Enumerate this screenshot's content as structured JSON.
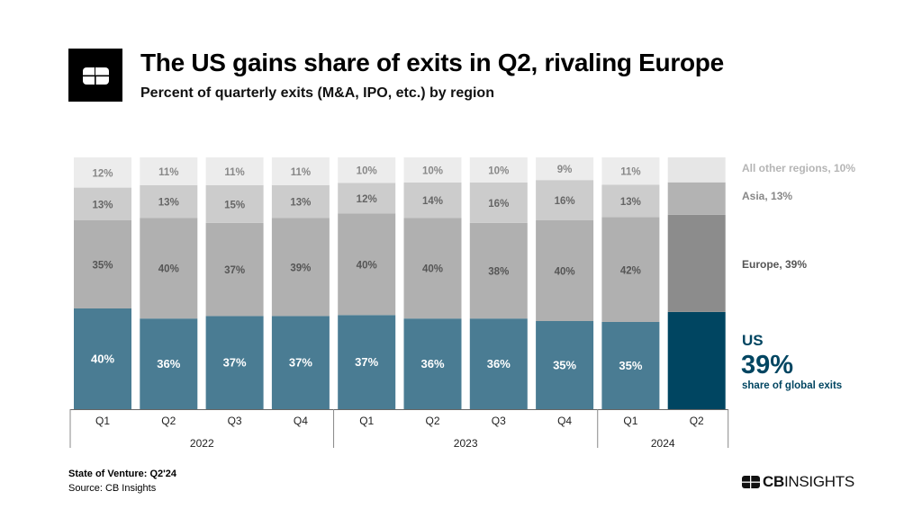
{
  "header": {
    "title": "The US gains share of exits in Q2, rivaling Europe",
    "subtitle": "Percent of quarterly exits (M&A, IPO, etc.) by region"
  },
  "chart_data": {
    "type": "bar",
    "stacked": true,
    "percent": true,
    "categories": [
      "Q1",
      "Q2",
      "Q3",
      "Q4",
      "Q1",
      "Q2",
      "Q3",
      "Q4",
      "Q1",
      "Q2"
    ],
    "years": [
      {
        "label": "2022",
        "quarters": 4
      },
      {
        "label": "2023",
        "quarters": 4
      },
      {
        "label": "2024",
        "quarters": 2
      }
    ],
    "series": [
      {
        "key": "us",
        "values": [
          40,
          36,
          37,
          37,
          37,
          36,
          36,
          35,
          35,
          39
        ],
        "color": "#4a7c93",
        "highlight_color": "#004561"
      },
      {
        "key": "europe",
        "values": [
          35,
          40,
          37,
          39,
          40,
          40,
          38,
          40,
          42,
          39
        ],
        "color": "#b0b0b0",
        "highlight_color": "#8c8c8c"
      },
      {
        "key": "asia",
        "values": [
          13,
          13,
          15,
          13,
          12,
          14,
          16,
          16,
          13,
          13
        ],
        "color": "#cccccc",
        "highlight_color": "#b3b3b3"
      },
      {
        "key": "other",
        "values": [
          12,
          11,
          11,
          11,
          10,
          10,
          10,
          9,
          11,
          10
        ],
        "color": "#ececec",
        "highlight_color": "#e6e6e6"
      }
    ],
    "labels_hidden_for_last_bar": true,
    "ylim": [
      0,
      100
    ],
    "grid": false
  },
  "annotations": {
    "other": "All other regions, 10%",
    "asia": "Asia, 13%",
    "europe": "Europe, 39%",
    "us_name": "US",
    "us_value": "39%",
    "us_caption": "share of global exits"
  },
  "footer": {
    "report": "State of Venture: Q2'24",
    "source": "Source: CB Insights",
    "brand": "CBINSIGHTS"
  }
}
